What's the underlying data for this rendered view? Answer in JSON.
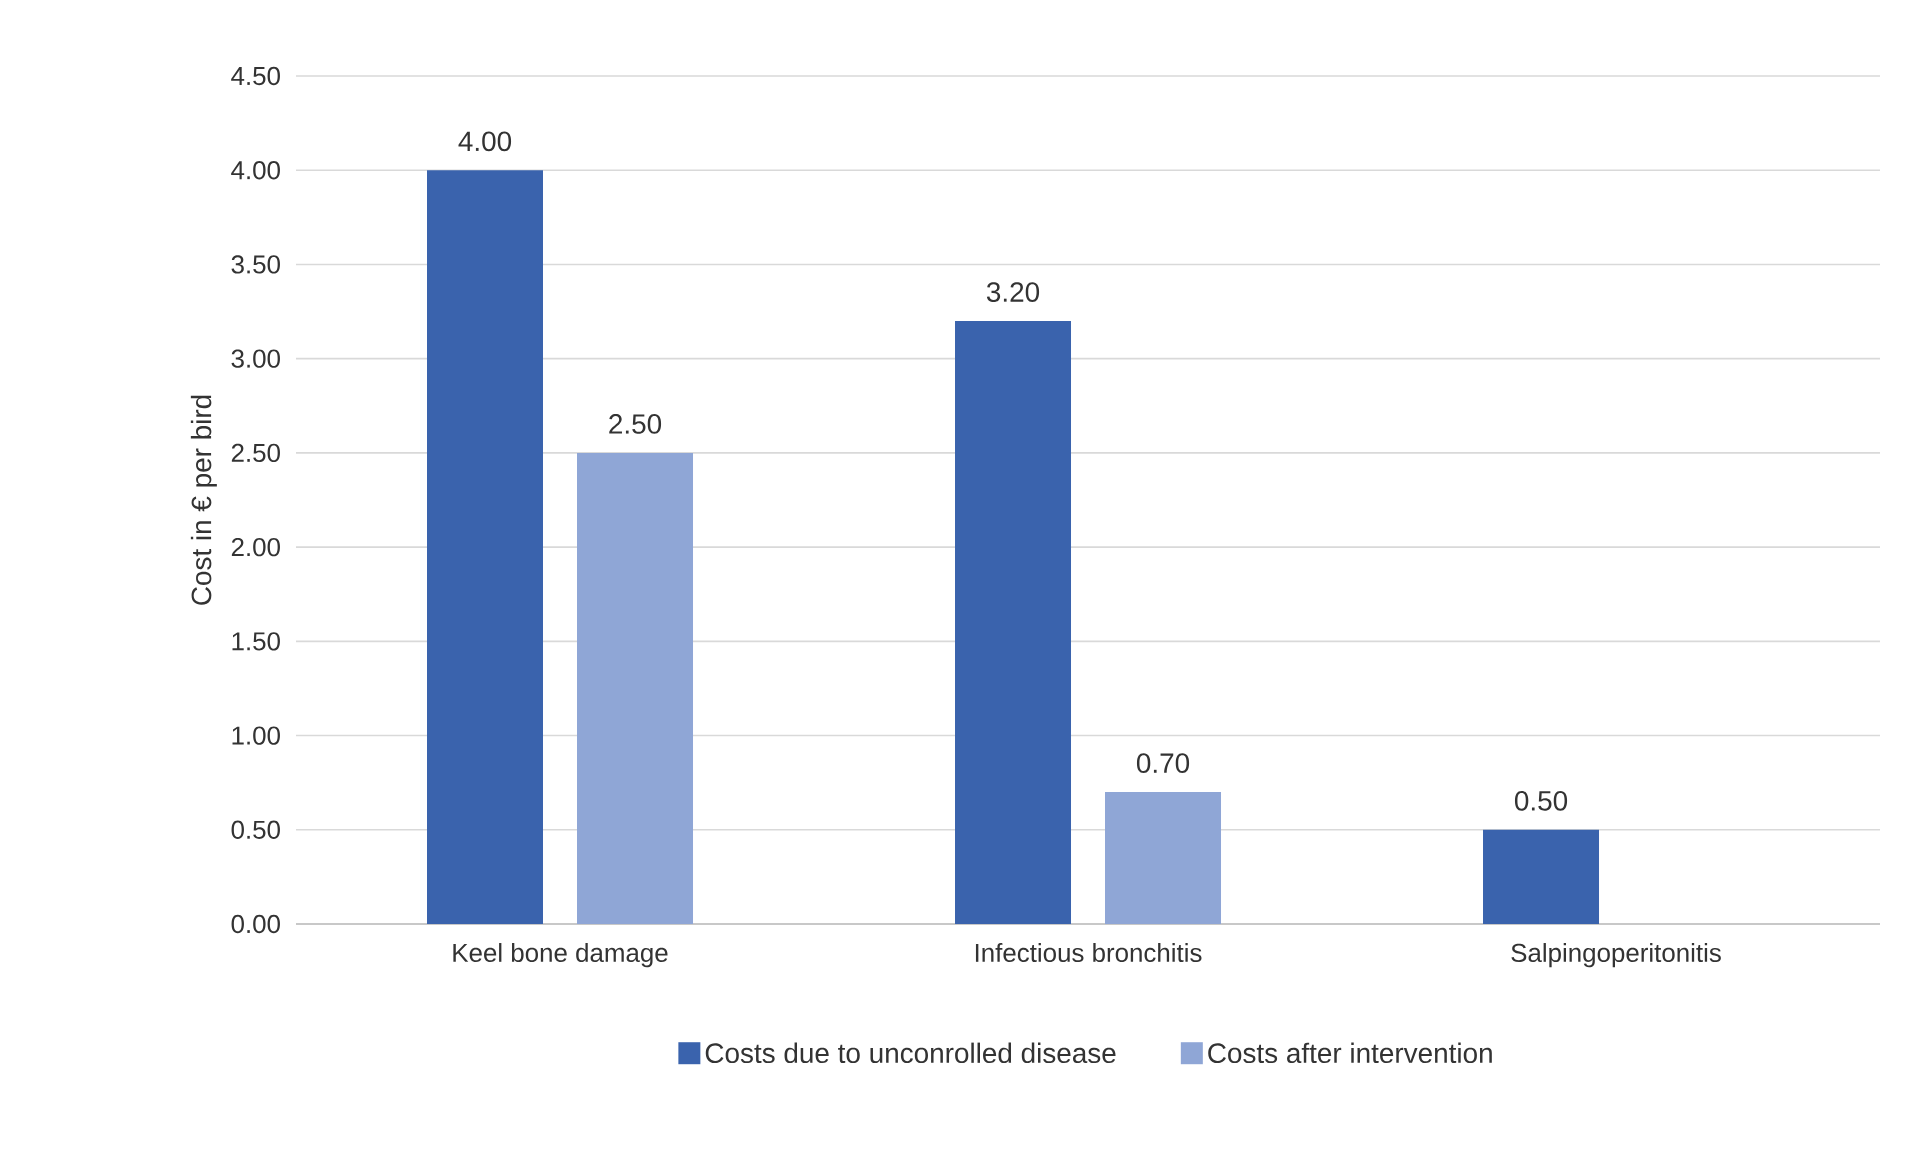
{
  "chart_data": {
    "type": "bar",
    "ylabel": "Cost in € per bird",
    "categories": [
      "Keel bone damage",
      "Infectious bronchitis",
      "Salpingoperitonitis"
    ],
    "series": [
      {
        "name": "Costs due to unconrolled disease",
        "color": "#3a63ad",
        "values": [
          4.0,
          3.2,
          0.5
        ],
        "value_labels": [
          "4.00",
          "3.20",
          "0.50"
        ]
      },
      {
        "name": "Costs after intervention",
        "color": "#8fa6d6",
        "values": [
          2.5,
          0.7,
          null
        ],
        "value_labels": [
          "2.50",
          "0.70",
          null
        ]
      }
    ],
    "ylim": [
      0,
      4.5
    ],
    "yticks": [
      {
        "value": 0,
        "label": "0.00"
      },
      {
        "value": 0.5,
        "label": "0.50"
      },
      {
        "value": 1,
        "label": "1.00"
      },
      {
        "value": 1.5,
        "label": "1.50"
      },
      {
        "value": 2,
        "label": "2.00"
      },
      {
        "value": 2.5,
        "label": "2.50"
      },
      {
        "value": 3,
        "label": "3.00"
      },
      {
        "value": 3.5,
        "label": "3.50"
      },
      {
        "value": 4,
        "label": "4.00"
      },
      {
        "value": 4.5,
        "label": "4.50"
      }
    ],
    "grid": "y",
    "legend": "bottom"
  }
}
